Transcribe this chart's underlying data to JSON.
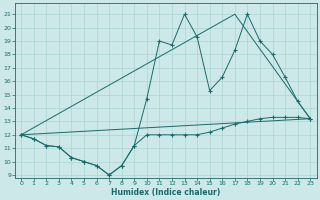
{
  "xlabel": "Humidex (Indice chaleur)",
  "bg_color": "#cce8e8",
  "line_color": "#1a6b6b",
  "grid_color": "#add4d4",
  "xlim": [
    -0.5,
    23.5
  ],
  "ylim": [
    8.8,
    21.8
  ],
  "yticks": [
    9,
    10,
    11,
    12,
    13,
    14,
    15,
    16,
    17,
    18,
    19,
    20,
    21
  ],
  "xticks": [
    0,
    1,
    2,
    3,
    4,
    5,
    6,
    7,
    8,
    9,
    10,
    11,
    12,
    13,
    14,
    15,
    16,
    17,
    18,
    19,
    20,
    21,
    22,
    23
  ],
  "series_zigzag": {
    "x": [
      0,
      1,
      2,
      3,
      4,
      5,
      6,
      7,
      8,
      9,
      10,
      11,
      12,
      13,
      14,
      15,
      16,
      17,
      18,
      19,
      20,
      21,
      22,
      23
    ],
    "y": [
      12,
      11.7,
      11.2,
      11.1,
      10.3,
      10.0,
      9.7,
      9.0,
      9.7,
      11.2,
      14.7,
      19.0,
      18.7,
      21.0,
      19.3,
      15.3,
      16.3,
      18.3,
      21.0,
      19.0,
      18.0,
      16.3,
      14.5,
      13.2
    ]
  },
  "series_flat": {
    "x": [
      0,
      1,
      2,
      3,
      4,
      5,
      6,
      7,
      8,
      9,
      10,
      11,
      12,
      13,
      14,
      15,
      16,
      17,
      18,
      19,
      20,
      21,
      22,
      23
    ],
    "y": [
      12,
      11.7,
      11.2,
      11.1,
      10.3,
      10.0,
      9.7,
      9.0,
      9.7,
      11.2,
      12.0,
      12.0,
      12.0,
      12.0,
      12.0,
      12.2,
      12.5,
      12.8,
      13.0,
      13.2,
      13.3,
      13.3,
      13.3,
      13.2
    ]
  },
  "line_straight_peak": {
    "x": [
      0,
      17,
      23
    ],
    "y": [
      12,
      21.0,
      13.2
    ]
  },
  "line_straight_end": {
    "x": [
      0,
      23
    ],
    "y": [
      12,
      13.2
    ]
  }
}
